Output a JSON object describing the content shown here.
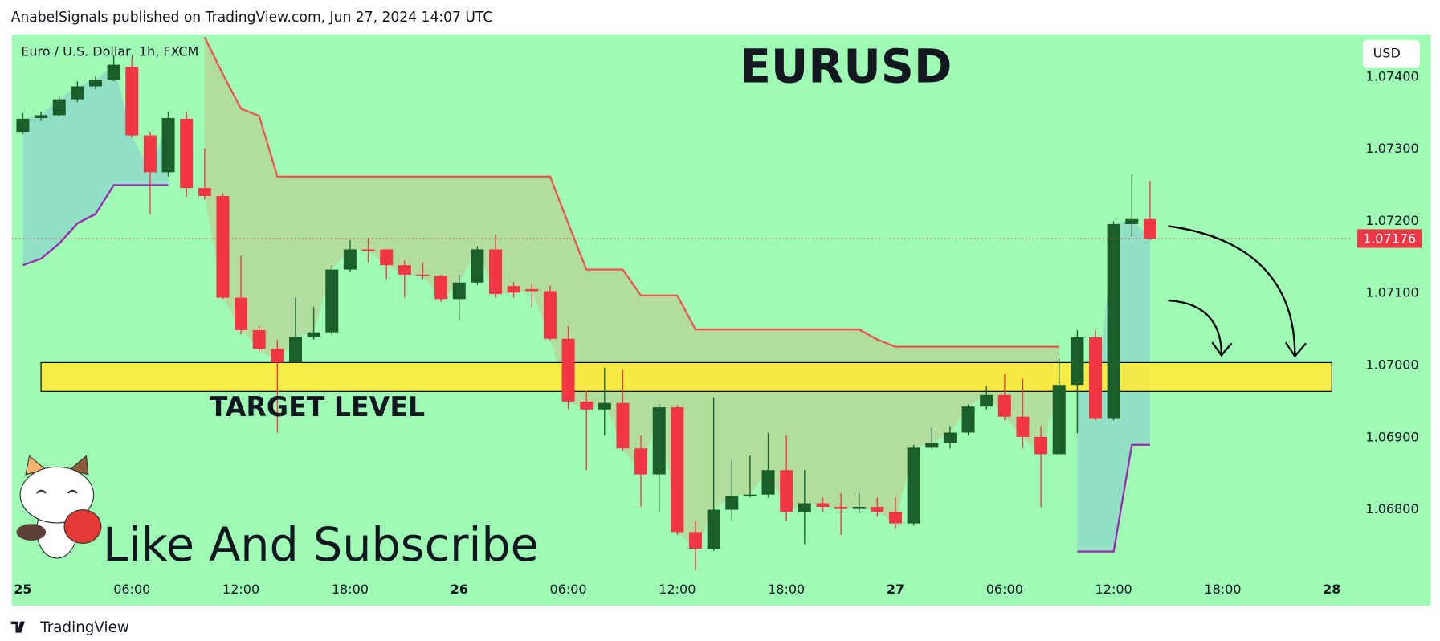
{
  "header": "AnabelSignals published on TradingView.com, Jun 27, 2024 14:07 UTC",
  "footer": "TradingView",
  "chart_data": {
    "type": "candlestick",
    "instrument": "Euro / U.S. Dollar, 1h, FXCM",
    "title": "EURUSD",
    "currency": "USD",
    "annotation": "Like And Subscribe",
    "background": "#9ffcb4",
    "up_color": "#1b5e2a",
    "down_color": "#f23645",
    "x": [
      0,
      1,
      2,
      3,
      4,
      5,
      6,
      7,
      8,
      9,
      10,
      11,
      12,
      13,
      14,
      15,
      16,
      17,
      18,
      19,
      20,
      21,
      22,
      23,
      24,
      25,
      26,
      27,
      28,
      29,
      30,
      31,
      32,
      33,
      34,
      35,
      36,
      37,
      38,
      39,
      40,
      41,
      42,
      43,
      44,
      45,
      46,
      47,
      48,
      49,
      50,
      51,
      52,
      53,
      54,
      55,
      56,
      57,
      58,
      59,
      60,
      61,
      62
    ],
    "open": [
      1.07324,
      1.07343,
      1.07347,
      1.07369,
      1.07387,
      1.07396,
      1.07414,
      1.07319,
      1.07268,
      1.07342,
      1.07246,
      1.07235,
      1.07094,
      1.07049,
      1.07023,
      1.07004,
      1.0704,
      1.07046,
      1.07133,
      1.07161,
      1.07161,
      1.07139,
      1.07126,
      1.07124,
      1.07092,
      1.07115,
      1.07161,
      1.0711,
      1.07106,
      1.07103,
      1.07037,
      1.0695,
      1.06939,
      1.06948,
      1.06885,
      1.06849,
      1.06942,
      1.06769,
      1.06746,
      1.068,
      1.06819,
      1.06821,
      1.06855,
      1.06797,
      1.06809,
      1.06804,
      1.06801,
      1.06804,
      1.06797,
      1.06781,
      1.06886,
      1.06892,
      1.06907,
      1.06943,
      1.06959,
      1.06929,
      1.06901,
      1.06877,
      1.06973,
      1.07039,
      1.06926,
      1.07196,
      1.07203
    ],
    "high": [
      1.0735,
      1.07352,
      1.07373,
      1.07394,
      1.07401,
      1.0743,
      1.07427,
      1.07324,
      1.07352,
      1.07352,
      1.07301,
      1.07239,
      1.07152,
      1.07055,
      1.07036,
      1.07094,
      1.07081,
      1.07139,
      1.07174,
      1.07177,
      1.07161,
      1.07146,
      1.07143,
      1.07126,
      1.07126,
      1.07165,
      1.07181,
      1.07116,
      1.07114,
      1.07111,
      1.07055,
      1.06965,
      1.06997,
      1.06994,
      1.06903,
      1.06946,
      1.06945,
      1.06785,
      1.06956,
      1.06868,
      1.06875,
      1.06907,
      1.06903,
      1.06855,
      1.06817,
      1.06823,
      1.06823,
      1.06817,
      1.06817,
      1.0689,
      1.06914,
      1.06916,
      1.06946,
      1.06972,
      1.06988,
      1.06982,
      1.06916,
      1.0701,
      1.07049,
      1.07049,
      1.072,
      1.07265,
      1.07256
    ],
    "low": [
      1.07321,
      1.07339,
      1.07345,
      1.07365,
      1.07383,
      1.07394,
      1.07316,
      1.0721,
      1.07262,
      1.07234,
      1.0723,
      1.07092,
      1.07043,
      1.07019,
      1.06907,
      1.07004,
      1.07036,
      1.07043,
      1.0713,
      1.07143,
      1.0712,
      1.07094,
      1.0712,
      1.07088,
      1.07062,
      1.07112,
      1.07094,
      1.07094,
      1.07081,
      1.07035,
      1.06939,
      1.06855,
      1.06903,
      1.06881,
      1.06804,
      1.06797,
      1.06765,
      1.06716,
      1.06743,
      1.06785,
      1.06817,
      1.06817,
      1.06785,
      1.06752,
      1.06797,
      1.06765,
      1.06795,
      1.0679,
      1.06774,
      1.06778,
      1.06884,
      1.06885,
      1.06903,
      1.06939,
      1.06924,
      1.06885,
      1.06804,
      1.06875,
      1.06906,
      1.06924,
      1.06924,
      1.07178,
      1.07174
    ],
    "close": [
      1.07342,
      1.07347,
      1.07369,
      1.07387,
      1.07396,
      1.07417,
      1.07319,
      1.07268,
      1.07343,
      1.07246,
      1.07235,
      1.07094,
      1.07049,
      1.07023,
      1.07004,
      1.0704,
      1.07046,
      1.07133,
      1.07161,
      1.07159,
      1.07139,
      1.07126,
      1.07124,
      1.07092,
      1.07115,
      1.07161,
      1.07099,
      1.07101,
      1.07103,
      1.07037,
      1.0695,
      1.06939,
      1.06948,
      1.06885,
      1.06849,
      1.06942,
      1.06769,
      1.06746,
      1.068,
      1.06819,
      1.06821,
      1.06855,
      1.06797,
      1.06809,
      1.06804,
      1.06801,
      1.06804,
      1.06797,
      1.06781,
      1.06886,
      1.06892,
      1.06907,
      1.06943,
      1.06959,
      1.06929,
      1.06901,
      1.06877,
      1.06973,
      1.07039,
      1.06926,
      1.07196,
      1.07203,
      1.07176
    ],
    "bands": [
      {
        "color": "#f0524e",
        "fill": "rgba(242,120,80,0.22)",
        "values": [
          null,
          null,
          null,
          null,
          null,
          null,
          null,
          null,
          null,
          null,
          1.07455,
          1.07404,
          1.07356,
          1.07346,
          1.07262,
          1.07262,
          1.07262,
          1.07262,
          1.07262,
          1.07262,
          1.07262,
          1.07262,
          1.07262,
          1.07262,
          1.07262,
          1.07262,
          1.07262,
          1.07262,
          1.07262,
          1.07262,
          1.07197,
          1.07133,
          1.07133,
          1.07133,
          1.07097,
          1.07097,
          1.07097,
          1.0705,
          1.0705,
          1.0705,
          1.0705,
          1.0705,
          1.0705,
          1.0705,
          1.0705,
          1.0705,
          1.0705,
          1.07036,
          1.07026,
          1.07026,
          1.07026,
          1.07026,
          1.07026,
          1.07026,
          1.07026,
          1.07026,
          1.07026,
          1.07026,
          null,
          null,
          null,
          null,
          null
        ]
      },
      {
        "color": "#9c27b0",
        "fill": "rgba(120,170,230,0.35)",
        "values": [
          1.07139,
          1.07148,
          1.07169,
          1.07197,
          1.0721,
          1.0725,
          1.0725,
          1.0725,
          1.0725,
          null,
          null,
          null,
          null,
          null,
          null,
          null,
          null,
          null,
          null,
          null,
          null,
          null,
          null,
          null,
          null,
          null,
          null,
          null,
          null,
          null,
          null,
          null,
          null,
          null,
          null,
          null,
          null,
          null,
          null,
          null,
          null,
          null,
          null,
          null,
          null,
          null,
          null,
          null,
          null,
          null,
          null,
          null,
          null,
          null,
          null,
          null,
          null,
          null,
          1.06742,
          1.06742,
          1.06742,
          1.0689,
          1.0689
        ]
      }
    ],
    "zone": {
      "label": "TARGET LEVEL",
      "top": 1.07004,
      "bottom": 1.06964,
      "from": 1,
      "to": 72,
      "color": "#ffeb3b"
    },
    "last_price": 1.07176,
    "last_price_color": "#f23645",
    "xlim": [
      -0.6,
      73
    ],
    "ylim": [
      1.06667,
      1.07459
    ],
    "xticks": [
      {
        "value": 0,
        "label": "25"
      },
      {
        "value": 6,
        "label": "06:00"
      },
      {
        "value": 12,
        "label": "12:00"
      },
      {
        "value": 18,
        "label": "18:00"
      },
      {
        "value": 24,
        "label": "26"
      },
      {
        "value": 30,
        "label": "06:00"
      },
      {
        "value": 36,
        "label": "12:00"
      },
      {
        "value": 42,
        "label": "18:00"
      },
      {
        "value": 48,
        "label": "27"
      },
      {
        "value": 54,
        "label": "06:00"
      },
      {
        "value": 60,
        "label": "12:00"
      },
      {
        "value": 66,
        "label": "18:00"
      },
      {
        "value": 72,
        "label": "28"
      }
    ],
    "yticks": [
      {
        "value": 1.068,
        "label": "1.06800"
      },
      {
        "value": 1.069,
        "label": "1.06900"
      },
      {
        "value": 1.07,
        "label": "1.07000"
      },
      {
        "value": 1.071,
        "label": "1.07100"
      },
      {
        "value": 1.072,
        "label": "1.07200"
      },
      {
        "value": 1.073,
        "label": "1.07300"
      },
      {
        "value": 1.074,
        "label": "1.07400"
      }
    ]
  }
}
